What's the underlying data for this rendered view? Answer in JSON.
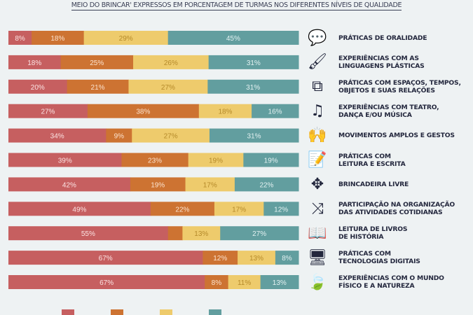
{
  "title": "MEIO DO BRINCAR' EXPRESSOS EM PORCENTAGEM DE TURMAS NOS DIFERENTES NÍVEIS DE QUALIDADE",
  "chart_data": {
    "type": "bar",
    "orientation": "horizontal",
    "stacked": true,
    "title": "MEIO DO BRINCAR' EXPRESSOS EM PORCENTAGEM DE TURMAS NOS DIFERENTES NÍVEIS DE QUALIDADE",
    "xlim": [
      0,
      100
    ],
    "grid": false,
    "legend": "bottom",
    "colors": [
      "#c65f60",
      "#cd7332",
      "#eecb6c",
      "#629e9f"
    ],
    "categories": [
      {
        "label": "PRÁTICAS DE ORALIDADE",
        "icon": "speech-bubble-icon"
      },
      {
        "label": "EXPERIÊNCIAS COM AS\nLINGUAGENS PLÁSTICAS",
        "icon": "paintbrush-icon"
      },
      {
        "label": "PRÁTICAS COM ESPAÇOS, TEMPOS,\nOBJETOS E SUAS RELAÇÕES",
        "icon": "overlapping-squares-icon"
      },
      {
        "label": "EXPERIÊNCIAS COM TEATRO,\nDANÇA E/OU MÚSICA",
        "icon": "music-note-icon"
      },
      {
        "label": "MOVIMENTOS AMPLOS E GESTOS",
        "icon": "person-arms-up-icon"
      },
      {
        "label": "PRÁTICAS COM\nLEITURA E ESCRITA",
        "icon": "document-pencil-icon"
      },
      {
        "label": "BRINCADEIRA LIVRE",
        "icon": "pinwheel-icon"
      },
      {
        "label": "PARTICIPAÇÃO NA ORGANIZAÇÃO\nDAS ATIVIDADES COTIDIANAS",
        "icon": "arrows-in-icon"
      },
      {
        "label": "LEITURA DE LIVROS\nDE HISTÓRIA",
        "icon": "open-book-icon"
      },
      {
        "label": "PRÁTICAS COM\nTECNOLOGIAS DIGITAIS",
        "icon": "monitor-icon"
      },
      {
        "label": "EXPERIÊNCIAS COM O MUNDO\nFÍSICO E A NATUREZA",
        "icon": "leaf-icon"
      }
    ],
    "series": [
      {
        "values": [
          8,
          18,
          20,
          27,
          34,
          39,
          42,
          49,
          55,
          67,
          67
        ],
        "labels": [
          "8%",
          "18%",
          "20%",
          "27%",
          "34%",
          "39%",
          "42%",
          "49%",
          "55%",
          "67%",
          "67%"
        ]
      },
      {
        "values": [
          18,
          25,
          21,
          38,
          9,
          23,
          19,
          22,
          5,
          12,
          8
        ],
        "labels": [
          "18%",
          "25%",
          "21%",
          "38%",
          "9%",
          "23%",
          "19%",
          "22%",
          "",
          "12%",
          "8%"
        ]
      },
      {
        "values": [
          29,
          26,
          27,
          18,
          27,
          19,
          17,
          17,
          13,
          13,
          11
        ],
        "labels": [
          "29%",
          "26%",
          "27%",
          "18%",
          "27%",
          "19%",
          "17%",
          "17%",
          "13%",
          "13%",
          "11%"
        ]
      },
      {
        "values": [
          45,
          31,
          31,
          16,
          31,
          19,
          22,
          12,
          27,
          8,
          13
        ],
        "labels": [
          "45%",
          "31%",
          "31%",
          "16%",
          "31%",
          "19%",
          "22%",
          "12%",
          "27%",
          "8%",
          "13%"
        ]
      }
    ]
  }
}
